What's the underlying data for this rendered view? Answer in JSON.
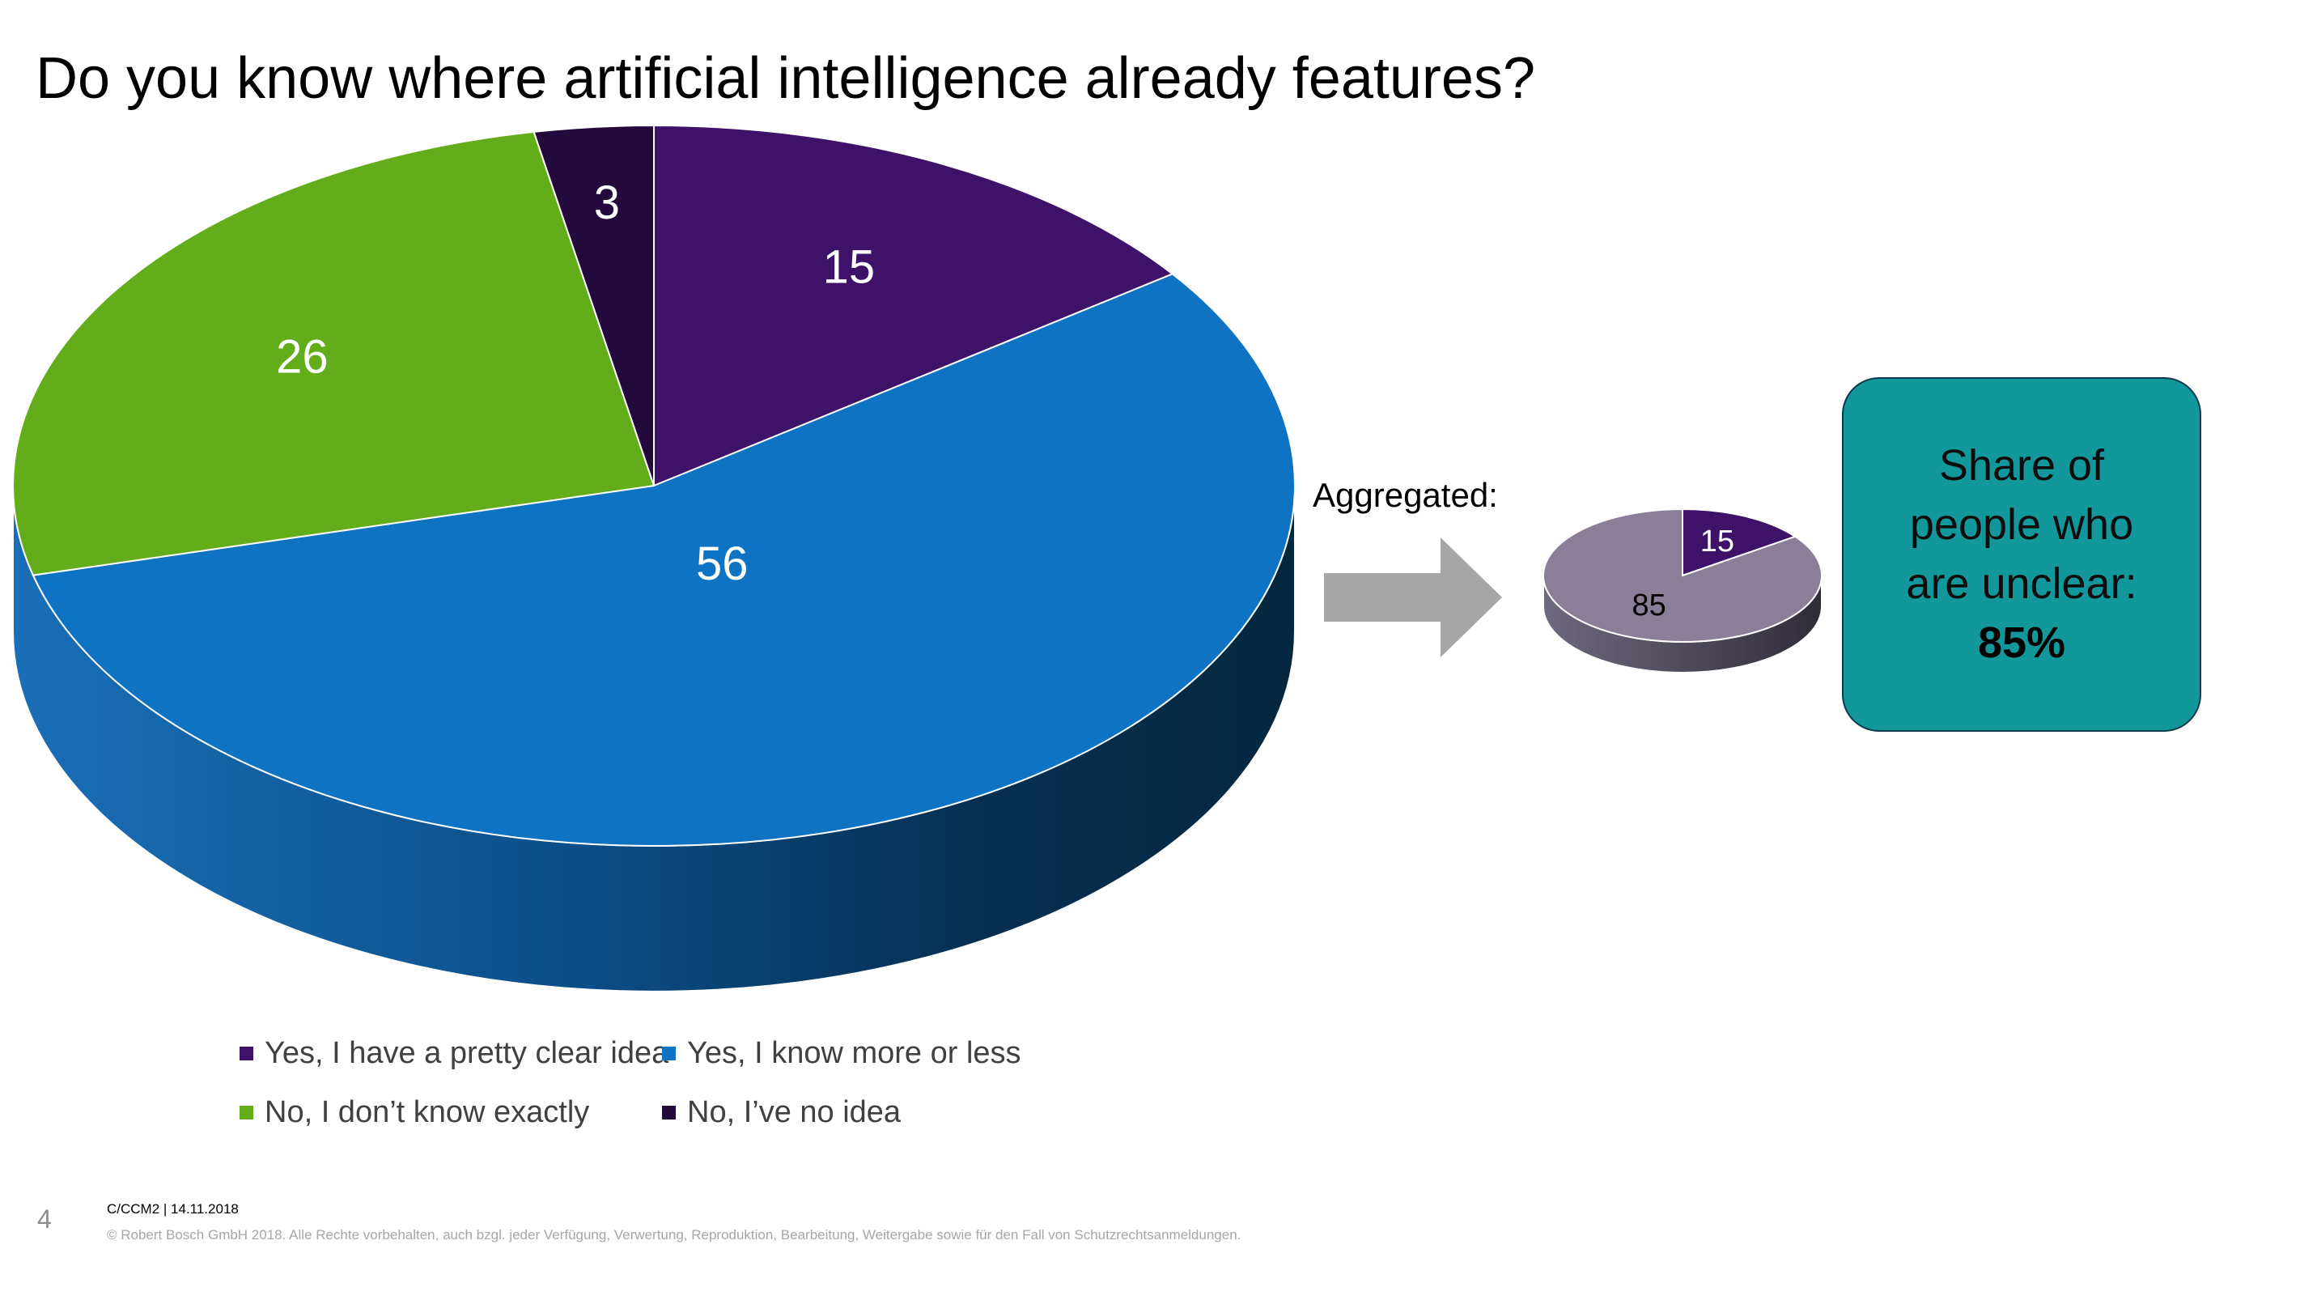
{
  "title": "Do you know where artificial intelligence already features?",
  "chart_data": [
    {
      "type": "pie",
      "style": "3d",
      "title": "",
      "categories": [
        "Yes, I have a pretty clear idea",
        "Yes, I know more or less",
        "No, I don’t know exactly",
        "No, I’ve no idea"
      ],
      "values": [
        15,
        56,
        26,
        3
      ],
      "labels": [
        "15",
        "56",
        "26",
        "3"
      ],
      "colors": [
        "#3e1269",
        "#0e73c2",
        "#63ad1a",
        "#24093d"
      ],
      "legend_position": "bottom"
    },
    {
      "type": "pie",
      "style": "3d",
      "title": "",
      "values": [
        15,
        85
      ],
      "labels": [
        "15",
        "85"
      ],
      "colors": [
        "#3e1269",
        "#8a7e98"
      ]
    }
  ],
  "aggregated_label": "Aggregated:",
  "callout": {
    "lines": [
      "Share of",
      "people who",
      "are unclear:"
    ],
    "value": "85%"
  },
  "colors": {
    "callout_bg": "#12979a",
    "arrow": "#a6a6a6"
  },
  "footer": {
    "page_number": "4",
    "reference": "C/CCM2 | 14.11.2018",
    "copyright": "© Robert Bosch GmbH 2018. Alle Rechte vorbehalten, auch bzgl. jeder Verfügung, Verwertung, Reproduktion, Bearbeitung, Weitergabe sowie für den Fall von Schutzrechtsanmeldungen."
  }
}
